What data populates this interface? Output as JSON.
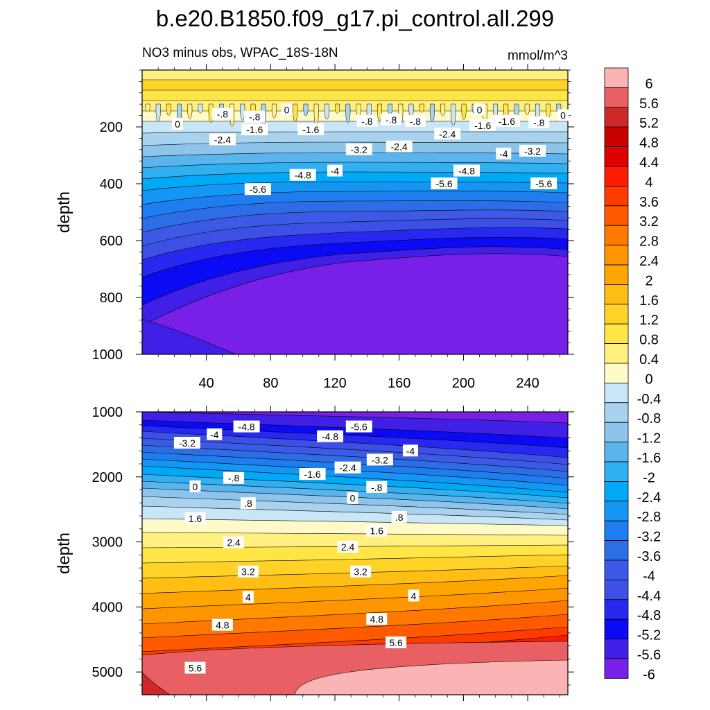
{
  "chart_data": {
    "type": "contour",
    "title": "b.e20.B1850.f09_g17.pi_control.all.299",
    "subtitle_left": "NO3 minus obs, WPAC_18S-18N",
    "units": "mmol/m^3",
    "xlim": [
      0,
      265
    ],
    "x_ticks": [
      "40",
      "80",
      "120",
      "160",
      "200",
      "240"
    ],
    "x_tick_values": [
      40,
      80,
      120,
      160,
      200,
      240
    ],
    "colorbar": {
      "levels": [
        "6",
        "5.6",
        "5.2",
        "4.8",
        "4.4",
        "4",
        "3.6",
        "3.2",
        "2.8",
        "2.4",
        "2",
        "1.6",
        "1.2",
        "0.8",
        "0.4",
        "0",
        "-0.4",
        "-0.8",
        "-1.2",
        "-1.6",
        "-2",
        "-2.4",
        "-2.8",
        "-3.2",
        "-3.6",
        "-4",
        "-4.4",
        "-4.8",
        "-5.2",
        "-5.6",
        "-6"
      ],
      "colors": [
        "#fbb4b4",
        "#e85f64",
        "#d02828",
        "#c80000",
        "#e00000",
        "#ff1a00",
        "#ff3c00",
        "#ff5a00",
        "#ff7800",
        "#ff9600",
        "#ffa500",
        "#ffbe14",
        "#ffd228",
        "#ffe646",
        "#fff080",
        "#fffac8",
        "#c8e6f5",
        "#a8d2ee",
        "#8cc4ec",
        "#5ab4ed",
        "#30b0f0",
        "#00a8f5",
        "#1496f5",
        "#1e7ef0",
        "#2d6ee6",
        "#3c5ae6",
        "#3c50e6",
        "#2828f0",
        "#0a0af5",
        "#4020e6",
        "#7820e8"
      ]
    },
    "panels": [
      {
        "ylabel": "depth",
        "ylim": [
          0,
          1000
        ],
        "y_ticks": [
          "200",
          "400",
          "600",
          "800",
          "1000"
        ],
        "y_tick_values": [
          200,
          400,
          600,
          800,
          1000
        ],
        "contour_labels": [
          {
            "text": "-.8",
            "x": 50,
            "y": 155
          },
          {
            "text": "-.8",
            "x": 70,
            "y": 165
          },
          {
            "text": "0",
            "x": 90,
            "y": 140
          },
          {
            "text": "0",
            "x": 22,
            "y": 190
          },
          {
            "text": "-.8",
            "x": 140,
            "y": 180
          },
          {
            "text": "-.8",
            "x": 155,
            "y": 175
          },
          {
            "text": "-.8",
            "x": 170,
            "y": 180
          },
          {
            "text": "0",
            "x": 210,
            "y": 140
          },
          {
            "text": "-1.6",
            "x": 212,
            "y": 195
          },
          {
            "text": "-1.6",
            "x": 227,
            "y": 180
          },
          {
            "text": "-.8",
            "x": 247,
            "y": 185
          },
          {
            "text": "0",
            "x": 262,
            "y": 160
          },
          {
            "text": "-2.4",
            "x": 50,
            "y": 245
          },
          {
            "text": "-1.6",
            "x": 70,
            "y": 210
          },
          {
            "text": "-1.6",
            "x": 105,
            "y": 210
          },
          {
            "text": "-3.2",
            "x": 135,
            "y": 280
          },
          {
            "text": "-2.4",
            "x": 160,
            "y": 270
          },
          {
            "text": "-2.4",
            "x": 190,
            "y": 225
          },
          {
            "text": "-4",
            "x": 225,
            "y": 295
          },
          {
            "text": "-3.2",
            "x": 243,
            "y": 285
          },
          {
            "text": "-4.8",
            "x": 100,
            "y": 370
          },
          {
            "text": "-4",
            "x": 120,
            "y": 355
          },
          {
            "text": "-4.8",
            "x": 202,
            "y": 355
          },
          {
            "text": "-5.6",
            "x": 72,
            "y": 420
          },
          {
            "text": "-5.6",
            "x": 188,
            "y": 400
          },
          {
            "text": "-5.6",
            "x": 250,
            "y": 400
          }
        ]
      },
      {
        "ylabel": "depth",
        "ylim": [
          1000,
          5350
        ],
        "y_ticks": [
          "1000",
          "2000",
          "3000",
          "4000",
          "5000"
        ],
        "y_tick_values": [
          1000,
          2000,
          3000,
          4000,
          5000
        ],
        "contour_labels": [
          {
            "text": "-4.8",
            "x": 65,
            "y": 1230
          },
          {
            "text": "-5.6",
            "x": 135,
            "y": 1230
          },
          {
            "text": "-4",
            "x": 45,
            "y": 1350
          },
          {
            "text": "-3.2",
            "x": 28,
            "y": 1480
          },
          {
            "text": "-4.8",
            "x": 117,
            "y": 1380
          },
          {
            "text": "-4",
            "x": 167,
            "y": 1600
          },
          {
            "text": "-3.2",
            "x": 148,
            "y": 1740
          },
          {
            "text": "-2.4",
            "x": 128,
            "y": 1860
          },
          {
            "text": "-1.6",
            "x": 106,
            "y": 1960
          },
          {
            "text": "-.8",
            "x": 57,
            "y": 2020
          },
          {
            "text": "0",
            "x": 33,
            "y": 2150
          },
          {
            "text": "-.8",
            "x": 146,
            "y": 2160
          },
          {
            "text": "0",
            "x": 131,
            "y": 2330
          },
          {
            "text": ".8",
            "x": 66,
            "y": 2410
          },
          {
            "text": ".8",
            "x": 160,
            "y": 2620
          },
          {
            "text": "1.6",
            "x": 33,
            "y": 2640
          },
          {
            "text": "1.6",
            "x": 146,
            "y": 2830
          },
          {
            "text": "2.4",
            "x": 57,
            "y": 3010
          },
          {
            "text": "2.4",
            "x": 128,
            "y": 3080
          },
          {
            "text": "3.2",
            "x": 66,
            "y": 3460
          },
          {
            "text": "3.2",
            "x": 136,
            "y": 3460
          },
          {
            "text": "4",
            "x": 66,
            "y": 3850
          },
          {
            "text": "4",
            "x": 169,
            "y": 3830
          },
          {
            "text": "4.8",
            "x": 50,
            "y": 4280
          },
          {
            "text": "4.8",
            "x": 146,
            "y": 4190
          },
          {
            "text": "5.6",
            "x": 158,
            "y": 4550
          },
          {
            "text": "5.6",
            "x": 33,
            "y": 4940
          }
        ]
      }
    ]
  }
}
